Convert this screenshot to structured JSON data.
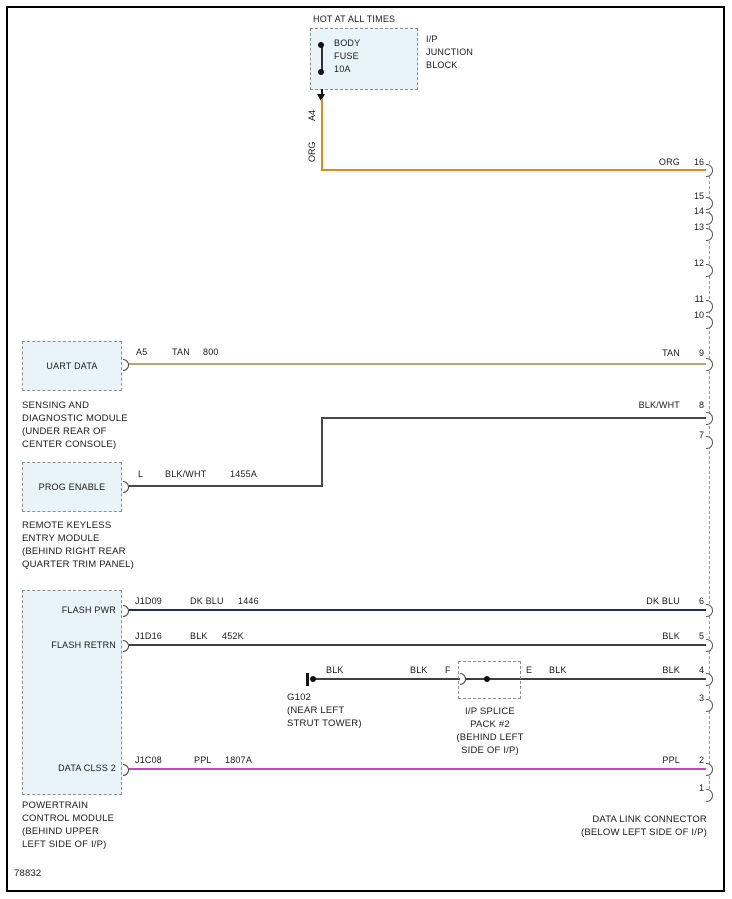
{
  "colors": {
    "org": "#E8861C",
    "tan": "#BFA26B",
    "blk": "#3F3F3F",
    "blk_wht": "#474747",
    "dk_blu": "#202B60",
    "ppl": "#CE3FCF"
  },
  "fuse_block": {
    "hot_label": "HOT AT ALL TIMES",
    "lines": [
      "BODY",
      "FUSE",
      "10A"
    ],
    "side_label": [
      "I/P",
      "JUNCTION",
      "BLOCK"
    ],
    "pin_label": "A4",
    "wire_label": "ORG"
  },
  "uart": {
    "box_label": "UART DATA",
    "pin": "A5",
    "wire_color": "TAN",
    "circuit": "800",
    "caption": [
      "SENSING AND",
      "DIAGNOSTIC MODULE",
      "(UNDER REAR OF",
      "CENTER CONSOLE)"
    ]
  },
  "prog": {
    "box_label": "PROG ENABLE",
    "pin": "L",
    "wire_color": "BLK/WHT",
    "circuit": "1455A",
    "caption": [
      "REMOTE KEYLESS",
      "ENTRY MODULE",
      "(BEHIND RIGHT REAR",
      "QUARTER TRIM PANEL)"
    ]
  },
  "pcm": {
    "flash_pwr": {
      "label": "FLASH PWR",
      "pin": "J1D09",
      "wire_color": "DK BLU",
      "circuit": "1446"
    },
    "flash_retrn": {
      "label": "FLASH RETRN",
      "pin": "J1D16",
      "wire_color": "BLK",
      "circuit": "452K"
    },
    "data_clss": {
      "label": "DATA CLSS 2",
      "pin": "J1C08",
      "wire_color": "PPL",
      "circuit": "1807A"
    },
    "caption": [
      "POWERTRAIN",
      "CONTROL MODULE",
      "(BEHIND UPPER",
      "LEFT SIDE OF I/P)"
    ]
  },
  "ground": {
    "wire_label_1": "BLK",
    "wire_label_2": "BLK",
    "caption": [
      "G102",
      "(NEAR LEFT",
      "STRUT TOWER)"
    ]
  },
  "splice": {
    "pin_in": "F",
    "pin_out": "E",
    "wire_label_out": "BLK",
    "caption": [
      "I/P SPLICE",
      "PACK #2",
      "(BEHIND LEFT",
      "SIDE OF I/P)"
    ]
  },
  "connector": {
    "caption": [
      "DATA LINK CONNECTOR",
      "(BELOW LEFT SIDE OF I/P)"
    ],
    "pins": [
      {
        "num": "16",
        "wire": "ORG"
      },
      {
        "num": "15",
        "wire": ""
      },
      {
        "num": "14",
        "wire": ""
      },
      {
        "num": "13",
        "wire": ""
      },
      {
        "num": "12",
        "wire": ""
      },
      {
        "num": "11",
        "wire": ""
      },
      {
        "num": "10",
        "wire": ""
      },
      {
        "num": "9",
        "wire": "TAN"
      },
      {
        "num": "8",
        "wire": "BLK/WHT"
      },
      {
        "num": "7",
        "wire": ""
      },
      {
        "num": "6",
        "wire": "DK BLU"
      },
      {
        "num": "5",
        "wire": "BLK"
      },
      {
        "num": "4",
        "wire": "BLK"
      },
      {
        "num": "3",
        "wire": ""
      },
      {
        "num": "2",
        "wire": "PPL"
      },
      {
        "num": "1",
        "wire": ""
      }
    ]
  },
  "footer": {
    "diagram_number": "78832"
  }
}
